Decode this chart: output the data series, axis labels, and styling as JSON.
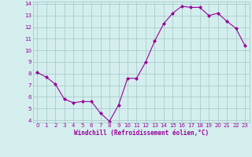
{
  "xlabel": "Windchill (Refroidissement éolien,°C)",
  "x_values": [
    0,
    1,
    2,
    3,
    4,
    5,
    6,
    7,
    8,
    9,
    10,
    11,
    12,
    13,
    14,
    15,
    16,
    17,
    18,
    19,
    20,
    21,
    22,
    23
  ],
  "y_values": [
    8.1,
    7.7,
    7.1,
    5.8,
    5.5,
    5.6,
    5.6,
    4.6,
    3.9,
    5.3,
    7.6,
    7.6,
    9.0,
    10.8,
    12.3,
    13.2,
    13.8,
    13.7,
    13.7,
    13.0,
    13.2,
    12.5,
    11.9,
    10.4
  ],
  "line_color": "#990099",
  "marker": "D",
  "marker_size": 2.0,
  "bg_color": "#d4eeee",
  "grid_color": "#aacccc",
  "tick_color": "#990099",
  "label_color": "#990099",
  "ylim": [
    4,
    14
  ],
  "xlim": [
    -0.5,
    23.5
  ],
  "yticks": [
    4,
    5,
    6,
    7,
    8,
    9,
    10,
    11,
    12,
    13,
    14
  ],
  "xticks": [
    0,
    1,
    2,
    3,
    4,
    5,
    6,
    7,
    8,
    9,
    10,
    11,
    12,
    13,
    14,
    15,
    16,
    17,
    18,
    19,
    20,
    21,
    22,
    23
  ],
  "tick_fontsize": 5.0,
  "xlabel_fontsize": 5.5,
  "linewidth": 0.8
}
